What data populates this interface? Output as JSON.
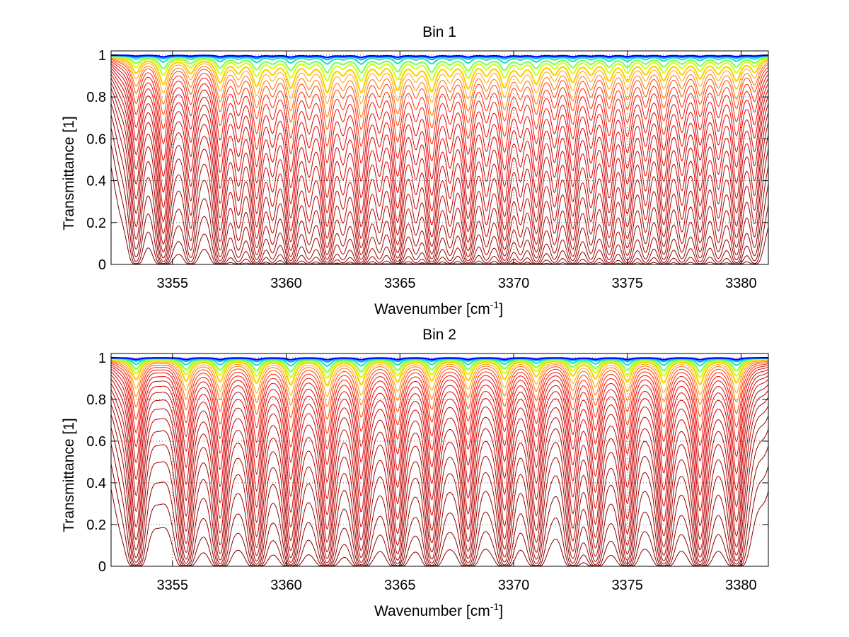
{
  "chart_data": [
    {
      "type": "line",
      "title": "Bin 1",
      "xlabel": "Wavenumber [cm",
      "xlabel_sup": "-1",
      "xlabel_close": "]",
      "ylabel": "Transmittance [1]",
      "xlim": [
        3352.3,
        3381.2
      ],
      "ylim": [
        0,
        1.02
      ],
      "xticks": [
        3355,
        3360,
        3365,
        3370,
        3375,
        3380
      ],
      "yticks": [
        0,
        0.2,
        0.4,
        0.6,
        0.8,
        1
      ],
      "ytick_labels": [
        "0",
        "0.2",
        "0.4",
        "0.6",
        "0.8",
        "1"
      ],
      "grid": true,
      "grid_style": "dotted",
      "absorption_lines": [
        {
          "x": 3353.4,
          "depth": 0.55
        },
        {
          "x": 3354.6,
          "depth": 0.95
        },
        {
          "x": 3355.8,
          "depth": 0.55
        },
        {
          "x": 3357.1,
          "depth": 0.85
        },
        {
          "x": 3357.9,
          "depth": 0.45
        },
        {
          "x": 3358.7,
          "depth": 0.95
        },
        {
          "x": 3359.4,
          "depth": 0.45
        },
        {
          "x": 3360.2,
          "depth": 1.05
        },
        {
          "x": 3361.0,
          "depth": 0.45
        },
        {
          "x": 3361.8,
          "depth": 1.2
        },
        {
          "x": 3362.5,
          "depth": 0.45
        },
        {
          "x": 3363.3,
          "depth": 1.2
        },
        {
          "x": 3364.1,
          "depth": 0.45
        },
        {
          "x": 3364.9,
          "depth": 1.1
        },
        {
          "x": 3365.7,
          "depth": 0.45
        },
        {
          "x": 3366.4,
          "depth": 1.15
        },
        {
          "x": 3367.2,
          "depth": 0.5
        },
        {
          "x": 3368.0,
          "depth": 1.05
        },
        {
          "x": 3368.8,
          "depth": 0.5
        },
        {
          "x": 3369.6,
          "depth": 1.0
        },
        {
          "x": 3370.3,
          "depth": 0.5
        },
        {
          "x": 3371.0,
          "depth": 0.85
        },
        {
          "x": 3371.8,
          "depth": 0.5
        },
        {
          "x": 3372.6,
          "depth": 0.8
        },
        {
          "x": 3373.4,
          "depth": 0.5
        },
        {
          "x": 3374.2,
          "depth": 0.75
        },
        {
          "x": 3375.0,
          "depth": 0.75
        },
        {
          "x": 3375.8,
          "depth": 0.5
        },
        {
          "x": 3376.6,
          "depth": 0.75
        },
        {
          "x": 3377.4,
          "depth": 0.5
        },
        {
          "x": 3378.2,
          "depth": 0.7
        },
        {
          "x": 3379.0,
          "depth": 0.5
        },
        {
          "x": 3379.8,
          "depth": 0.8
        },
        {
          "x": 3380.6,
          "depth": 0.5
        }
      ],
      "series_optical_depth_scale": [
        0.005,
        0.01,
        0.02,
        0.04,
        0.06,
        0.09,
        0.12,
        0.16,
        0.2,
        0.26,
        0.33,
        0.42,
        0.52,
        0.64,
        0.78,
        0.95,
        1.15,
        1.4,
        1.7,
        2.1,
        2.6,
        3.3,
        4.2,
        5.5,
        7.5
      ],
      "series_colors": [
        "#0000ff",
        "#00a0ff",
        "#20e0c0",
        "#80ff60",
        "#d0ff20",
        "#ffd000",
        "#ffa000",
        "#ff7000",
        "#ff4000",
        "#ff2000",
        "#f01000",
        "#e80000",
        "#e00000",
        "#d80000",
        "#d00000",
        "#c80000",
        "#c00000",
        "#b80000",
        "#b00000",
        "#a80000",
        "#a00000",
        "#980000",
        "#900000",
        "#880000",
        "#800000"
      ]
    },
    {
      "type": "line",
      "title": "Bin 2",
      "xlabel": "Wavenumber [cm",
      "xlabel_sup": "-1",
      "xlabel_close": "]",
      "ylabel": "Transmittance [1]",
      "xlim": [
        3352.3,
        3381.2
      ],
      "ylim": [
        0,
        1.02
      ],
      "xticks": [
        3355,
        3360,
        3365,
        3370,
        3375,
        3380
      ],
      "yticks": [
        0,
        0.2,
        0.4,
        0.6,
        0.8,
        1
      ],
      "ytick_labels": [
        "0",
        "0.2",
        "0.4",
        "0.6",
        "0.8",
        "1"
      ],
      "grid": true,
      "grid_style": "dotted",
      "absorption_lines": [
        {
          "x": 3353.4,
          "depth": 0.95
        },
        {
          "x": 3355.6,
          "depth": 1.0
        },
        {
          "x": 3357.1,
          "depth": 1.0
        },
        {
          "x": 3358.7,
          "depth": 1.05
        },
        {
          "x": 3360.2,
          "depth": 1.15
        },
        {
          "x": 3361.8,
          "depth": 1.2
        },
        {
          "x": 3363.3,
          "depth": 1.15
        },
        {
          "x": 3364.9,
          "depth": 1.0
        },
        {
          "x": 3366.4,
          "depth": 0.95
        },
        {
          "x": 3368.0,
          "depth": 0.95
        },
        {
          "x": 3369.6,
          "depth": 0.9
        },
        {
          "x": 3371.0,
          "depth": 0.75
        },
        {
          "x": 3372.6,
          "depth": 0.7
        },
        {
          "x": 3373.6,
          "depth": 0.85
        },
        {
          "x": 3375.0,
          "depth": 1.0
        },
        {
          "x": 3376.6,
          "depth": 1.05
        },
        {
          "x": 3378.2,
          "depth": 1.15
        },
        {
          "x": 3379.8,
          "depth": 1.1
        }
      ],
      "series_optical_depth_scale": [
        0.005,
        0.01,
        0.02,
        0.035,
        0.05,
        0.07,
        0.1,
        0.13,
        0.17,
        0.22,
        0.28,
        0.35,
        0.44,
        0.55,
        0.68,
        0.84,
        1.05,
        1.3,
        1.6,
        2.0,
        2.5,
        3.2,
        4.2,
        5.6,
        7.8
      ],
      "series_colors": [
        "#0000ff",
        "#00a0ff",
        "#20e0c0",
        "#80ff60",
        "#d0ff20",
        "#ffd000",
        "#ffa000",
        "#ff7000",
        "#ff4000",
        "#ff2000",
        "#f01000",
        "#e80000",
        "#e00000",
        "#d80000",
        "#d00000",
        "#c80000",
        "#c00000",
        "#b80000",
        "#b00000",
        "#a80000",
        "#a00000",
        "#980000",
        "#900000",
        "#880000",
        "#800000"
      ]
    }
  ]
}
